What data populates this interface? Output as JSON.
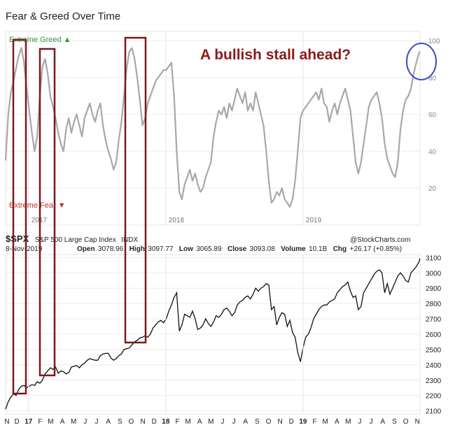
{
  "page_title": "Fear & Greed Over Time",
  "chart_data": [
    {
      "type": "line",
      "title": "Fear & Greed Over Time",
      "ylim": [
        0,
        100
      ],
      "yticks": [
        20,
        40,
        60,
        80,
        100
      ],
      "x_marks": [
        "2017",
        "2018",
        "2019"
      ],
      "label_top": "Extreme Greed",
      "label_bottom": "Extreme Fear",
      "annotation": "A bullish stall ahead?",
      "color": "#a8a8a8",
      "x": [
        "2016-11-01",
        "2016-11-08",
        "2016-11-15",
        "2016-11-22",
        "2016-11-29",
        "2016-12-06",
        "2016-12-13",
        "2016-12-20",
        "2016-12-27",
        "2017-01-03",
        "2017-01-10",
        "2017-01-17",
        "2017-01-24",
        "2017-01-31",
        "2017-02-07",
        "2017-02-14",
        "2017-02-21",
        "2017-02-28",
        "2017-03-07",
        "2017-03-14",
        "2017-03-21",
        "2017-03-28",
        "2017-04-04",
        "2017-04-11",
        "2017-04-18",
        "2017-04-25",
        "2017-05-02",
        "2017-05-09",
        "2017-05-16",
        "2017-05-23",
        "2017-05-30",
        "2017-06-06",
        "2017-06-13",
        "2017-06-20",
        "2017-06-27",
        "2017-07-04",
        "2017-07-11",
        "2017-07-18",
        "2017-07-25",
        "2017-08-01",
        "2017-08-08",
        "2017-08-15",
        "2017-08-22",
        "2017-08-29",
        "2017-09-05",
        "2017-09-12",
        "2017-09-19",
        "2017-09-26",
        "2017-10-03",
        "2017-10-10",
        "2017-10-17",
        "2017-10-24",
        "2017-10-31",
        "2017-11-07",
        "2017-11-14",
        "2017-11-21",
        "2017-11-28",
        "2017-12-05",
        "2017-12-12",
        "2017-12-19",
        "2017-12-26",
        "2018-01-02",
        "2018-01-09",
        "2018-01-16",
        "2018-01-23",
        "2018-01-30",
        "2018-02-06",
        "2018-02-13",
        "2018-02-20",
        "2018-02-27",
        "2018-03-06",
        "2018-03-13",
        "2018-03-20",
        "2018-03-27",
        "2018-04-03",
        "2018-04-10",
        "2018-04-17",
        "2018-04-24",
        "2018-05-01",
        "2018-05-08",
        "2018-05-15",
        "2018-05-22",
        "2018-05-29",
        "2018-06-05",
        "2018-06-12",
        "2018-06-19",
        "2018-06-26",
        "2018-07-03",
        "2018-07-10",
        "2018-07-17",
        "2018-07-24",
        "2018-07-31",
        "2018-08-07",
        "2018-08-14",
        "2018-08-21",
        "2018-08-28",
        "2018-09-04",
        "2018-09-11",
        "2018-09-18",
        "2018-09-25",
        "2018-10-02",
        "2018-10-09",
        "2018-10-16",
        "2018-10-23",
        "2018-10-30",
        "2018-11-06",
        "2018-11-13",
        "2018-11-20",
        "2018-11-27",
        "2018-12-04",
        "2018-12-11",
        "2018-12-18",
        "2018-12-25",
        "2019-01-01",
        "2019-01-08",
        "2019-01-15",
        "2019-01-22",
        "2019-01-29",
        "2019-02-05",
        "2019-02-12",
        "2019-02-19",
        "2019-02-26",
        "2019-03-05",
        "2019-03-12",
        "2019-03-19",
        "2019-03-26",
        "2019-04-02",
        "2019-04-09",
        "2019-04-16",
        "2019-04-23",
        "2019-04-30",
        "2019-05-07",
        "2019-05-14",
        "2019-05-21",
        "2019-05-28",
        "2019-06-04",
        "2019-06-11",
        "2019-06-18",
        "2019-06-25",
        "2019-07-02",
        "2019-07-09",
        "2019-07-16",
        "2019-07-23",
        "2019-07-30",
        "2019-08-06",
        "2019-08-13",
        "2019-08-20",
        "2019-08-27",
        "2019-09-03",
        "2019-09-10",
        "2019-09-17",
        "2019-09-24",
        "2019-10-01",
        "2019-10-08",
        "2019-10-15",
        "2019-10-22",
        "2019-10-29",
        "2019-11-05",
        "2019-11-08"
      ],
      "values": [
        35,
        60,
        72,
        78,
        85,
        92,
        96,
        88,
        74,
        62,
        50,
        40,
        48,
        70,
        86,
        90,
        82,
        70,
        64,
        58,
        50,
        44,
        40,
        52,
        58,
        50,
        56,
        60,
        54,
        48,
        58,
        62,
        66,
        60,
        56,
        62,
        66,
        54,
        46,
        40,
        36,
        30,
        34,
        46,
        56,
        70,
        85,
        94,
        96,
        90,
        80,
        68,
        54,
        58,
        66,
        70,
        74,
        78,
        80,
        82,
        84,
        84,
        86,
        88,
        70,
        40,
        18,
        14,
        22,
        26,
        30,
        24,
        28,
        22,
        18,
        20,
        26,
        30,
        34,
        48,
        56,
        62,
        60,
        64,
        58,
        66,
        62,
        68,
        74,
        70,
        66,
        72,
        62,
        66,
        62,
        72,
        66,
        60,
        54,
        40,
        24,
        12,
        14,
        18,
        16,
        20,
        14,
        12,
        10,
        14,
        24,
        40,
        58,
        62,
        64,
        66,
        68,
        70,
        72,
        68,
        74,
        66,
        64,
        56,
        62,
        66,
        60,
        66,
        70,
        74,
        68,
        62,
        48,
        34,
        28,
        34,
        44,
        54,
        64,
        68,
        70,
        72,
        66,
        58,
        44,
        36,
        32,
        28,
        26,
        34,
        52,
        62,
        68,
        70,
        74,
        82,
        88,
        93,
        94
      ]
    },
    {
      "type": "line",
      "symbol": "$SPX",
      "name": "S&P 500 Large Cap Index",
      "exchange": "INDX",
      "source": "@StockCharts.com",
      "date": "8-Nov-2019",
      "quote": {
        "open_label": "Open",
        "open": "3078.96",
        "high_label": "High",
        "high": "3097.77",
        "low_label": "Low",
        "low": "3065.89",
        "close_label": "Close",
        "close": "3093.08",
        "volume_label": "Volume",
        "volume": "10.1B",
        "chg_label": "Chg",
        "chg": "+26.17 (+0.85%)"
      },
      "ylim": [
        2080,
        3120
      ],
      "yticks": [
        2100,
        2200,
        2300,
        2400,
        2500,
        2600,
        2700,
        2800,
        2900,
        3000,
        3100
      ],
      "month_labels": [
        "N",
        "D",
        "17",
        "F",
        "M",
        "A",
        "M",
        "J",
        "J",
        "A",
        "S",
        "O",
        "N",
        "D",
        "18",
        "F",
        "M",
        "A",
        "M",
        "J",
        "J",
        "A",
        "S",
        "O",
        "N",
        "D",
        "19",
        "F",
        "M",
        "A",
        "M",
        "J",
        "J",
        "A",
        "S",
        "O",
        "N"
      ],
      "color": "#111111",
      "x": [
        "2016-11-01",
        "2016-11-08",
        "2016-11-15",
        "2016-11-22",
        "2016-11-29",
        "2016-12-06",
        "2016-12-13",
        "2016-12-20",
        "2016-12-27",
        "2017-01-03",
        "2017-01-10",
        "2017-01-17",
        "2017-01-24",
        "2017-01-31",
        "2017-02-07",
        "2017-02-14",
        "2017-02-21",
        "2017-02-28",
        "2017-03-07",
        "2017-03-14",
        "2017-03-21",
        "2017-03-28",
        "2017-04-04",
        "2017-04-11",
        "2017-04-18",
        "2017-04-25",
        "2017-05-02",
        "2017-05-09",
        "2017-05-16",
        "2017-05-23",
        "2017-05-30",
        "2017-06-06",
        "2017-06-13",
        "2017-06-20",
        "2017-06-27",
        "2017-07-04",
        "2017-07-11",
        "2017-07-18",
        "2017-07-25",
        "2017-08-01",
        "2017-08-08",
        "2017-08-15",
        "2017-08-22",
        "2017-08-29",
        "2017-09-05",
        "2017-09-12",
        "2017-09-19",
        "2017-09-26",
        "2017-10-03",
        "2017-10-10",
        "2017-10-17",
        "2017-10-24",
        "2017-10-31",
        "2017-11-07",
        "2017-11-14",
        "2017-11-21",
        "2017-11-28",
        "2017-12-05",
        "2017-12-12",
        "2017-12-19",
        "2017-12-26",
        "2018-01-02",
        "2018-01-09",
        "2018-01-16",
        "2018-01-23",
        "2018-01-30",
        "2018-02-06",
        "2018-02-13",
        "2018-02-20",
        "2018-02-27",
        "2018-03-06",
        "2018-03-13",
        "2018-03-20",
        "2018-03-27",
        "2018-04-03",
        "2018-04-10",
        "2018-04-17",
        "2018-04-24",
        "2018-05-01",
        "2018-05-08",
        "2018-05-15",
        "2018-05-22",
        "2018-05-29",
        "2018-06-05",
        "2018-06-12",
        "2018-06-19",
        "2018-06-26",
        "2018-07-03",
        "2018-07-10",
        "2018-07-17",
        "2018-07-24",
        "2018-07-31",
        "2018-08-07",
        "2018-08-14",
        "2018-08-21",
        "2018-08-28",
        "2018-09-04",
        "2018-09-11",
        "2018-09-18",
        "2018-09-25",
        "2018-10-02",
        "2018-10-09",
        "2018-10-16",
        "2018-10-23",
        "2018-10-30",
        "2018-11-06",
        "2018-11-13",
        "2018-11-20",
        "2018-11-27",
        "2018-12-04",
        "2018-12-11",
        "2018-12-18",
        "2018-12-25",
        "2019-01-01",
        "2019-01-08",
        "2019-01-15",
        "2019-01-22",
        "2019-01-29",
        "2019-02-05",
        "2019-02-12",
        "2019-02-19",
        "2019-02-26",
        "2019-03-05",
        "2019-03-12",
        "2019-03-19",
        "2019-03-26",
        "2019-04-02",
        "2019-04-09",
        "2019-04-16",
        "2019-04-23",
        "2019-04-30",
        "2019-05-07",
        "2019-05-14",
        "2019-05-21",
        "2019-05-28",
        "2019-06-04",
        "2019-06-11",
        "2019-06-18",
        "2019-06-25",
        "2019-07-02",
        "2019-07-09",
        "2019-07-16",
        "2019-07-23",
        "2019-07-30",
        "2019-08-06",
        "2019-08-13",
        "2019-08-20",
        "2019-08-27",
        "2019-09-03",
        "2019-09-10",
        "2019-09-17",
        "2019-09-24",
        "2019-10-01",
        "2019-10-08",
        "2019-10-15",
        "2019-10-22",
        "2019-10-29",
        "2019-11-05",
        "2019-11-08"
      ],
      "values": [
        2110,
        2160,
        2190,
        2210,
        2200,
        2240,
        2260,
        2265,
        2250,
        2260,
        2270,
        2265,
        2290,
        2280,
        2300,
        2340,
        2360,
        2380,
        2370,
        2385,
        2345,
        2360,
        2355,
        2340,
        2350,
        2385,
        2390,
        2395,
        2380,
        2400,
        2410,
        2430,
        2440,
        2435,
        2430,
        2430,
        2460,
        2470,
        2475,
        2475,
        2445,
        2430,
        2440,
        2460,
        2470,
        2500,
        2505,
        2510,
        2530,
        2550,
        2560,
        2575,
        2580,
        2590,
        2580,
        2600,
        2640,
        2660,
        2680,
        2690,
        2675,
        2700,
        2750,
        2790,
        2840,
        2870,
        2620,
        2660,
        2730,
        2720,
        2710,
        2750,
        2700,
        2630,
        2640,
        2660,
        2700,
        2670,
        2650,
        2680,
        2720,
        2710,
        2730,
        2760,
        2770,
        2750,
        2720,
        2740,
        2790,
        2810,
        2820,
        2840,
        2850,
        2830,
        2860,
        2900,
        2880,
        2900,
        2910,
        2930,
        2920,
        2760,
        2780,
        2660,
        2710,
        2740,
        2730,
        2650,
        2690,
        2610,
        2580,
        2480,
        2420,
        2510,
        2580,
        2600,
        2640,
        2700,
        2730,
        2760,
        2780,
        2790,
        2790,
        2810,
        2820,
        2830,
        2870,
        2890,
        2910,
        2920,
        2940,
        2880,
        2840,
        2850,
        2760,
        2780,
        2870,
        2900,
        2930,
        2960,
        2990,
        3010,
        3020,
        3000,
        2870,
        2930,
        2860,
        2900,
        2940,
        2980,
        3000,
        2980,
        2950,
        2940,
        3000,
        3020,
        3040,
        3070,
        3093
      ]
    }
  ]
}
